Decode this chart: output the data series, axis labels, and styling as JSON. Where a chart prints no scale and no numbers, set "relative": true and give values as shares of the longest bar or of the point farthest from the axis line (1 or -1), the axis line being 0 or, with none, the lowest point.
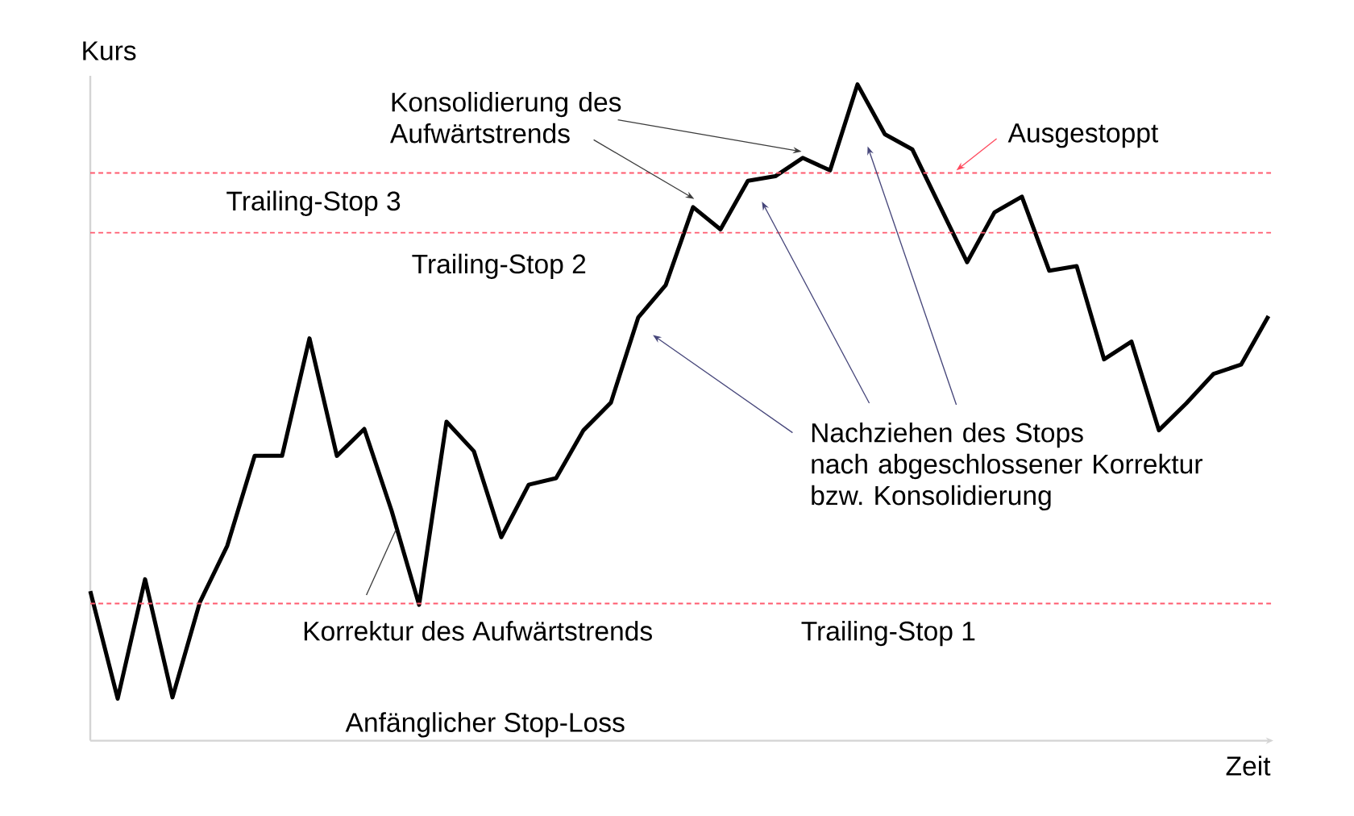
{
  "chart_data": {
    "type": "line",
    "xlabel": "Zeit",
    "ylabel": "Kurs",
    "relative": true,
    "categories": [
      null,
      null,
      null,
      null,
      null,
      null,
      null,
      null,
      null,
      null,
      null,
      null,
      null,
      null,
      null,
      null,
      null,
      null,
      null,
      null,
      null,
      null,
      null,
      null,
      null,
      null,
      null,
      null,
      null,
      null,
      null,
      null,
      null,
      null,
      null,
      null,
      null,
      null,
      null,
      null,
      null,
      null,
      null,
      null
    ],
    "series": [
      {
        "color": "#000000",
        "values": [
          0.228,
          0.064,
          0.246,
          0.066,
          0.211,
          0.297,
          0.434,
          0.434,
          0.613,
          0.434,
          0.475,
          0.35,
          0.207,
          0.486,
          0.441,
          0.31,
          0.39,
          0.4,
          0.473,
          0.515,
          0.645,
          0.694,
          0.813,
          0.779,
          0.853,
          0.86,
          0.888,
          0.869,
          1.0,
          0.924,
          0.901,
          0.815,
          0.729,
          0.805,
          0.829,
          0.716,
          0.723,
          0.581,
          0.608,
          0.473,
          0.514,
          0.559,
          0.573,
          0.647
        ]
      }
    ],
    "ref_lines": [
      {
        "axis": "y",
        "value": 0.865,
        "label": "Trailing-Stop 3",
        "color": "#ff5a6e",
        "line_style": "dashed"
      },
      {
        "axis": "y",
        "value": 0.774,
        "label": "Trailing-Stop 2",
        "color": "#ff5a6e",
        "line_style": "dashed"
      },
      {
        "axis": "y",
        "value": 0.209,
        "label": "Trailing-Stop 1",
        "color": "#ff5a6e",
        "line_style": "dashed"
      }
    ],
    "annotations": [
      "Konsolidierung des\nAufwärtstrends",
      "Nachziehen des Stops\nnach abgeschlossener Korrektur\nbzw. Konsolidierung",
      "Korrektur des Aufwärtstrends",
      "Ausgestoppt",
      "Anfänglicher Stop-Loss"
    ]
  }
}
